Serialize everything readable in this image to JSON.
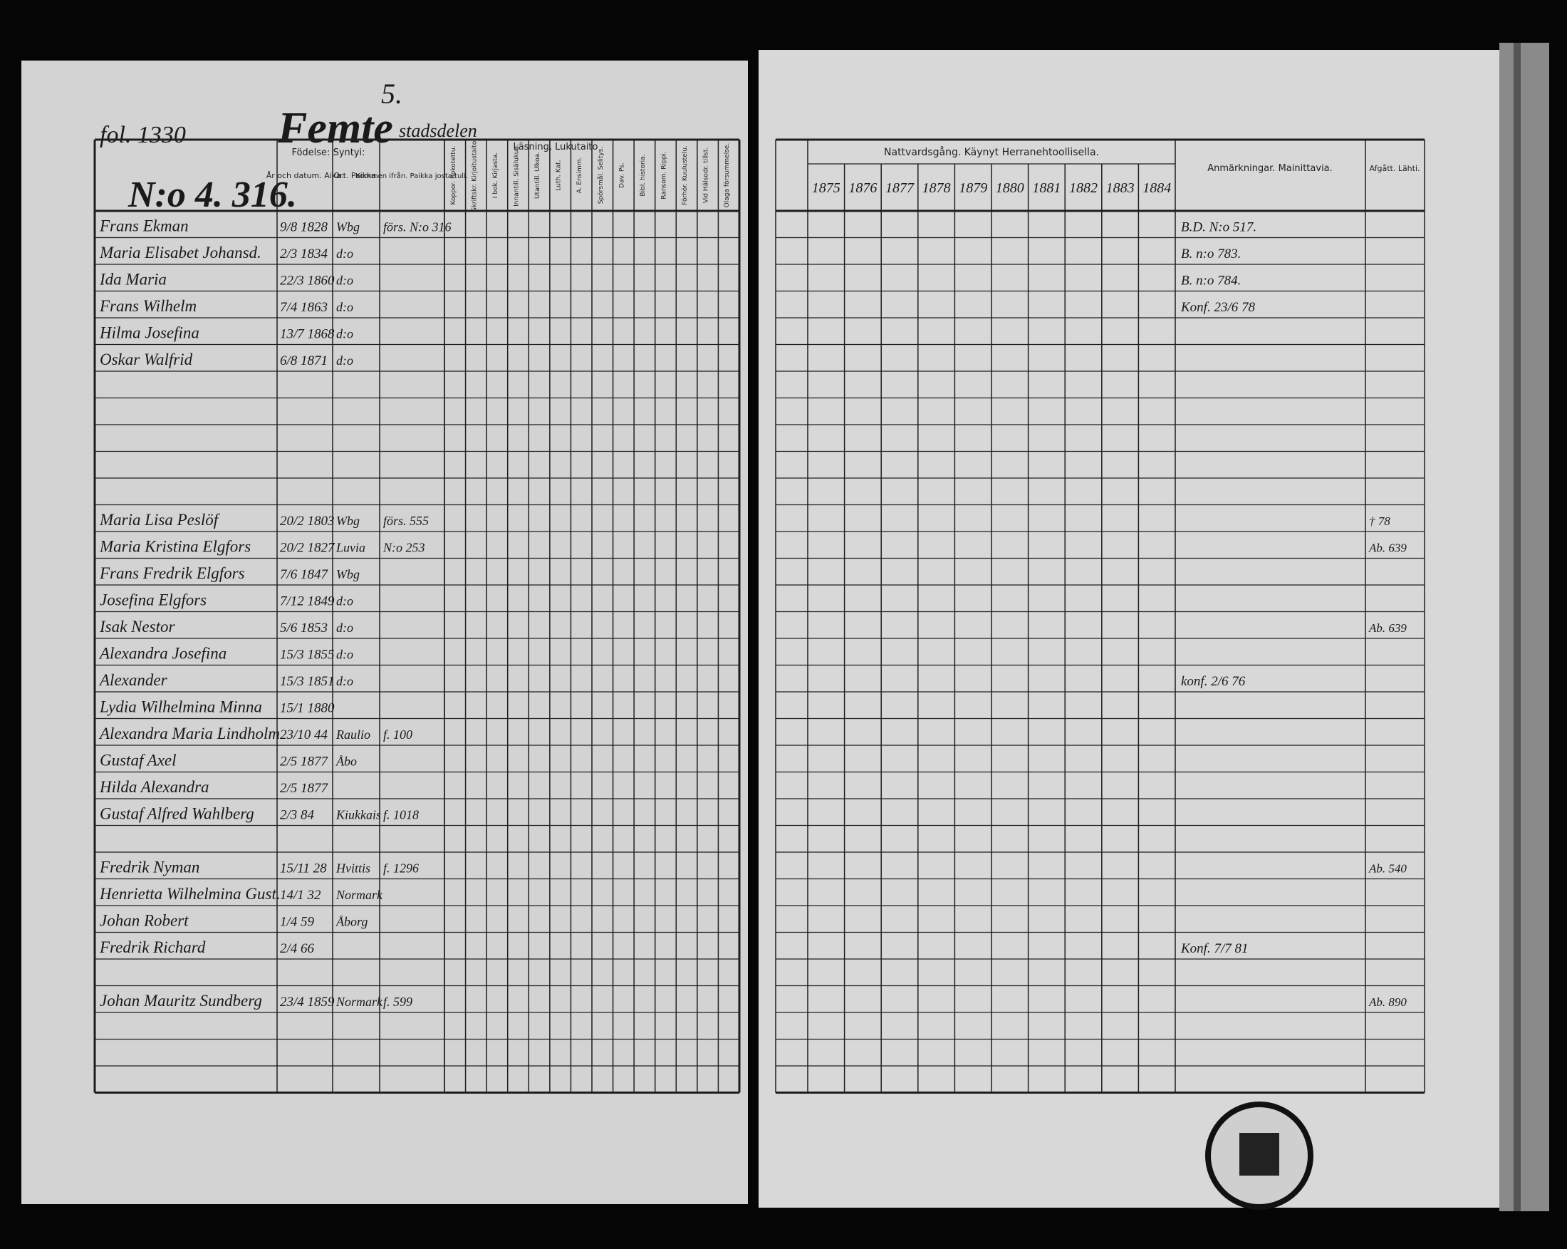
{
  "header": {
    "folio": "fol. 1330",
    "title": "Femte",
    "subtitle": "stadsdelen",
    "district_no": "5.",
    "house_no": "N:o 4. 316."
  },
  "left_headers": {
    "birth": "Födelse: Syntyi:",
    "date": "År och datum. Aika.",
    "place": "Ort. Paikka.",
    "origin": "Kommen ifrån. Paikka josta tuli.",
    "reading": "Läsning, Lukutaito",
    "narrow": [
      "Koppor. Rokotettu.",
      "Skriftskr. Kirjoitustaito.",
      "I bok. Kirjasta.",
      "Innantill. Sisälukua.",
      "Utantill. Ulkoa.",
      "Luth. Kat.",
      "A. Ensimm.",
      "Spörsmål. Selitys.",
      "Dav. Ps.",
      "Bibl. historia.",
      "Ransom. Rippi.",
      "Förhör. Kuulustelu.",
      "Vid Hälsodr. tillst.",
      "Olaga försummelse."
    ]
  },
  "right_headers": {
    "communion": "Nattvardsgång. Käynyt Herranehtoollisella.",
    "remarks": "Anmärkningar. Mainittavia.",
    "left": "Afgått. Lähti."
  },
  "years": [
    "1875",
    "1876",
    "1877",
    "1878",
    "1879",
    "1880",
    "1881",
    "1882",
    "1883",
    "1884"
  ],
  "rows": [
    {
      "name": "Frans Ekman",
      "date": "9/8 1828",
      "place": "Wbg",
      "origin": "förs. N:o 316",
      "remark": "B.D. N:o 517."
    },
    {
      "name": "Maria Elisabet Johansd.",
      "date": "2/3 1834",
      "place": "d:o",
      "remark": "B. n:o 783."
    },
    {
      "name": "Ida Maria",
      "date": "22/3 1860",
      "place": "d:o",
      "remark": "B. n:o 784."
    },
    {
      "name": "Frans Wilhelm",
      "date": "7/4 1863",
      "place": "d:o",
      "remark": "Konf. 23/6 78"
    },
    {
      "name": "Hilma Josefina",
      "date": "13/7 1868",
      "place": "d:o"
    },
    {
      "name": "Oskar Walfrid",
      "date": "6/8 1871",
      "place": "d:o"
    },
    {
      "name": "Maria Lisa Peslöf",
      "date": "20/2 1803",
      "place": "Wbg",
      "origin": "förs. 555",
      "left": "† 78"
    },
    {
      "name": "Maria Kristina Elgfors",
      "date": "20/2 1827",
      "place": "Luvia",
      "origin": "N:o 253",
      "left": "Ab. 639"
    },
    {
      "name": "Frans Fredrik Elgfors",
      "date": "7/6 1847",
      "place": "Wbg"
    },
    {
      "name": "Josefina Elgfors",
      "date": "7/12 1849",
      "place": "d:o"
    },
    {
      "name": "Isak Nestor",
      "date": "5/6 1853",
      "place": "d:o",
      "left": "Ab. 639"
    },
    {
      "name": "Alexandra Josefina",
      "date": "15/3 1855",
      "place": "d:o"
    },
    {
      "name": "Alexander",
      "date": "15/3 1851",
      "place": "d:o",
      "remark": "konf. 2/6 76"
    },
    {
      "name": "Lydia Wilhelmina Minna",
      "date": "15/1 1880"
    },
    {
      "name": "Alexandra Maria Lindholm",
      "date": "23/10 44",
      "place": "Raulio",
      "origin": "f. 100"
    },
    {
      "name": "Gustaf Axel",
      "date": "2/5 1877",
      "place": "Åbo"
    },
    {
      "name": "Hilda Alexandra",
      "date": "2/5 1877"
    },
    {
      "name": "Gustaf Alfred Wahlberg",
      "date": "2/3 84",
      "place": "Kiukkais",
      "origin": "f. 1018"
    },
    {
      "name": "Fredrik Nyman",
      "date": "15/11 28",
      "place": "Hvittis",
      "origin": "f. 1296",
      "left": "Ab. 540"
    },
    {
      "name": "Henrietta Wilhelmina Gust.",
      "date": "14/1 32",
      "place": "Normark"
    },
    {
      "name": "Johan Robert",
      "date": "1/4 59",
      "place": "Åborg"
    },
    {
      "name": "Fredrik Richard",
      "date": "2/4 66",
      "remark": "Konf. 7/7 81"
    },
    {
      "name": "Johan Mauritz Sundberg",
      "date": "23/4 1859",
      "place": "Normark",
      "origin": "f. 599",
      "left": "Ab. 890"
    }
  ]
}
